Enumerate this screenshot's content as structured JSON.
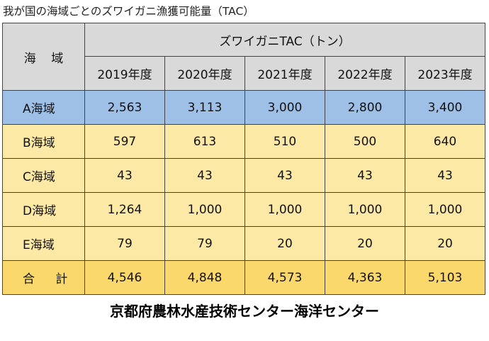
{
  "title": "我が国の海域ごとのズワイガニ漁獲可能量（TAC）",
  "table": {
    "region_header": "海 域",
    "group_header": "ズワイガニTAC（トン）",
    "years": [
      "2019年度",
      "2020年度",
      "2021年度",
      "2022年度",
      "2023年度"
    ],
    "rows": [
      {
        "label": "A海域",
        "values": [
          "2,563",
          "3,113",
          "3,000",
          "2,800",
          "3,400"
        ]
      },
      {
        "label": "B海域",
        "values": [
          "597",
          "613",
          "510",
          "500",
          "640"
        ]
      },
      {
        "label": "C海域",
        "values": [
          "43",
          "43",
          "43",
          "43",
          "43"
        ]
      },
      {
        "label": "D海域",
        "values": [
          "1,264",
          "1,000",
          "1,000",
          "1,000",
          "1,000"
        ]
      },
      {
        "label": "E海域",
        "values": [
          "79",
          "79",
          "20",
          "20",
          "20"
        ]
      },
      {
        "label": "合 計",
        "values": [
          "4,546",
          "4,848",
          "4,573",
          "4,363",
          "5,103"
        ]
      }
    ]
  },
  "footer": "京都府農林水産技術センター海洋センター",
  "colors": {
    "header_bg": "#d9d9d9",
    "row_a_bg": "#9fc0e6",
    "row_bg": "#fde9a6",
    "total_bg": "#fbd86b"
  }
}
